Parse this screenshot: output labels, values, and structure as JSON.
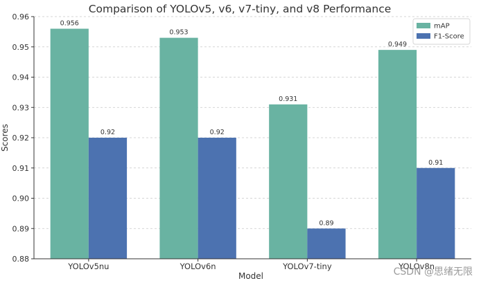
{
  "chart_data": {
    "type": "bar",
    "title": "Comparison of YOLOv5, v6, v7-tiny, and v8 Performance",
    "xlabel": "Model",
    "ylabel": "Scores",
    "categories": [
      "YOLOv5nu",
      "YOLOv6n",
      "YOLOv7-tiny",
      "YOLOv8n"
    ],
    "series": [
      {
        "name": "mAP",
        "values": [
          0.956,
          0.953,
          0.931,
          0.949
        ],
        "labels": [
          "0.956",
          "0.953",
          "0.931",
          "0.949"
        ],
        "color": "#69b3a2"
      },
      {
        "name": "F1-Score",
        "values": [
          0.92,
          0.92,
          0.89,
          0.91
        ],
        "labels": [
          "0.92",
          "0.92",
          "0.89",
          "0.91"
        ],
        "color": "#4c72b0"
      }
    ],
    "ylim": [
      0.88,
      0.96
    ],
    "yticks": [
      "0.88",
      "0.89",
      "0.90",
      "0.91",
      "0.92",
      "0.93",
      "0.94",
      "0.95",
      "0.96"
    ],
    "grid": "y-dashed",
    "legend_position": "top-right"
  },
  "watermark": "CSDN @思绪无限"
}
